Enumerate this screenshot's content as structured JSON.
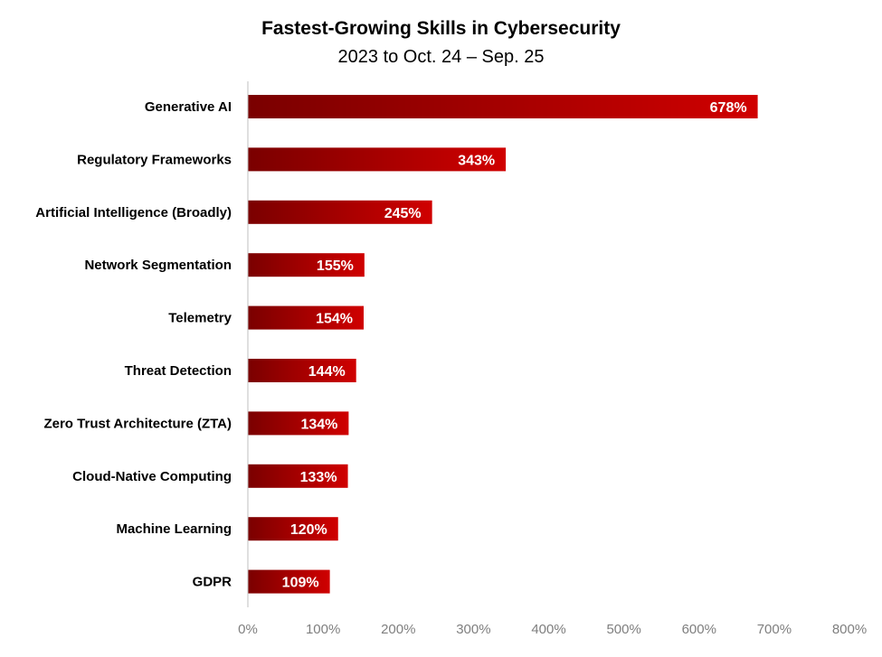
{
  "chart_data": {
    "type": "bar",
    "orientation": "horizontal",
    "title": "Fastest-Growing Skills in Cybersecurity",
    "subtitle": "2023 to Oct. 24 – Sep. 25",
    "categories": [
      "Generative AI",
      "Regulatory Frameworks",
      "Artificial Intelligence (Broadly)",
      "Network Segmentation",
      "Telemetry",
      "Threat Detection",
      "Zero Trust Architecture (ZTA)",
      "Cloud-Native Computing",
      "Machine Learning",
      "GDPR"
    ],
    "values": [
      678,
      343,
      245,
      155,
      154,
      144,
      134,
      133,
      120,
      109
    ],
    "data_labels": [
      "678%",
      "343%",
      "245%",
      "155%",
      "154%",
      "144%",
      "134%",
      "133%",
      "120%",
      "109%"
    ],
    "xlim": [
      0,
      800
    ],
    "xticks": [
      0,
      100,
      200,
      300,
      400,
      500,
      600,
      700,
      800
    ],
    "xtick_labels": [
      "0%",
      "100%",
      "200%",
      "300%",
      "400%",
      "500%",
      "600%",
      "700%",
      "800%"
    ],
    "grid": false,
    "legend": "none",
    "colors": {
      "bar_dark": "#7a0000",
      "bar_light": "#d00000",
      "axis": "#bfbfbf"
    }
  }
}
